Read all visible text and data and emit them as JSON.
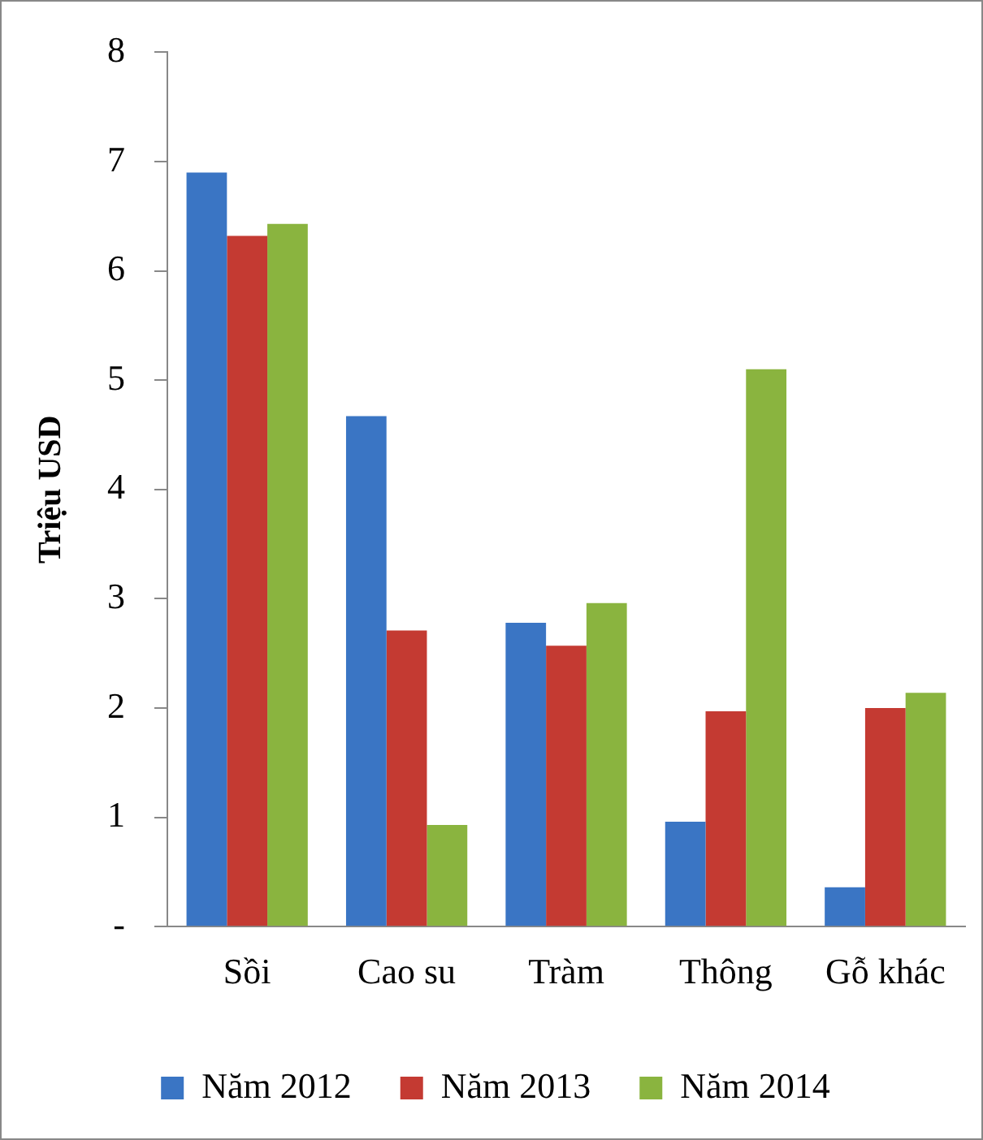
{
  "chart_data": {
    "type": "bar",
    "ylabel": "Triệu USD",
    "categories": [
      "Sồi",
      "Cao su",
      "Tràm",
      "Thông",
      "Gỗ khác"
    ],
    "series": [
      {
        "name": "Năm 2012",
        "color": "#3a75c4",
        "values": [
          6.9,
          4.67,
          2.78,
          0.96,
          0.36
        ]
      },
      {
        "name": "Năm 2013",
        "color": "#c43a32",
        "values": [
          6.32,
          2.71,
          2.57,
          1.97,
          2.0
        ]
      },
      {
        "name": "Năm 2014",
        "color": "#8ab43f",
        "values": [
          6.43,
          0.93,
          2.96,
          5.1,
          2.14
        ]
      }
    ],
    "ylim": [
      0,
      8
    ],
    "yticks": [
      {
        "value": 0,
        "label": "-"
      },
      1,
      2,
      3,
      4,
      5,
      6,
      7,
      8
    ],
    "grid": false,
    "legend": "bottom"
  }
}
